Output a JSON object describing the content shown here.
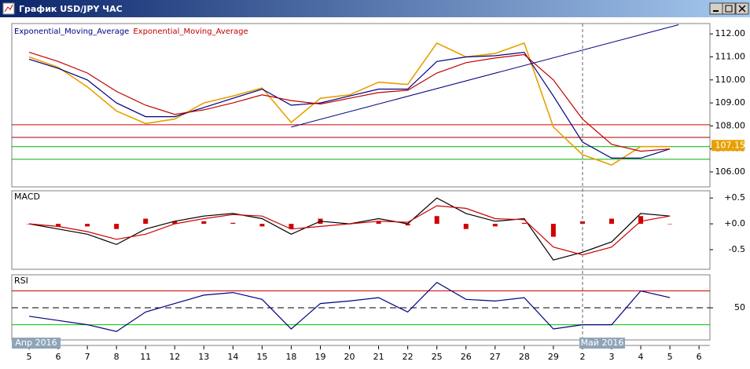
{
  "window_title": "График USD/JPY ЧАС",
  "month_labels": [
    "Апр 2016",
    "Май 2016"
  ],
  "chart_data": [
    {
      "type": "line",
      "categories": [
        "5",
        "6",
        "7",
        "8",
        "11",
        "12",
        "13",
        "14",
        "15",
        "18",
        "19",
        "20",
        "21",
        "22",
        "25",
        "26",
        "27",
        "28",
        "29",
        "2",
        "3",
        "4",
        "5",
        "6"
      ],
      "series": [
        {
          "color": "#e8a000",
          "values": [
            111.0,
            110.55,
            109.7,
            108.65,
            108.1,
            108.3,
            109.0,
            109.3,
            109.65,
            108.15,
            109.2,
            109.35,
            109.9,
            109.8,
            111.6,
            111.0,
            111.15,
            111.6,
            107.95,
            106.75,
            106.3,
            107.1,
            107.1,
            null
          ]
        },
        {
          "name": "Exponential_Moving_Average",
          "color": "#000080",
          "values": [
            110.9,
            110.5,
            110.0,
            109.0,
            108.4,
            108.4,
            108.8,
            109.2,
            109.6,
            108.9,
            109.0,
            109.3,
            109.6,
            109.6,
            110.8,
            111.0,
            111.05,
            111.2,
            109.3,
            107.3,
            106.6,
            106.6,
            107.0,
            null
          ]
        },
        {
          "name": "Exponential_Moving_Average",
          "color": "#c00000",
          "values": [
            111.2,
            110.8,
            110.3,
            109.5,
            108.9,
            108.5,
            108.7,
            109.0,
            109.35,
            109.1,
            108.95,
            109.2,
            109.45,
            109.55,
            110.3,
            110.75,
            110.95,
            111.1,
            110.0,
            108.3,
            107.2,
            106.9,
            107.0,
            null
          ]
        }
      ],
      "levels": [
        {
          "value": 108.05,
          "color": "#d00000"
        },
        {
          "value": 107.5,
          "color": "#a00000"
        },
        {
          "value": 107.1,
          "color": "#00b000"
        },
        {
          "value": 106.55,
          "color": "#00b000"
        }
      ],
      "trendline": {
        "from_index": 9,
        "from_value": 107.95,
        "to_index": 22.3,
        "to_value": 112.4,
        "color": "#000080"
      },
      "last_price": 107.15,
      "ylim": [
        105.35,
        112.45
      ],
      "yticks": [
        {
          "value": 106,
          "label": "106.00"
        },
        {
          "value": 107,
          "label": "107.00"
        },
        {
          "value": 108,
          "label": "108.00"
        },
        {
          "value": 109,
          "label": "109.00"
        },
        {
          "value": 110,
          "label": "110.00"
        },
        {
          "value": 111,
          "label": "111.00"
        },
        {
          "value": 112,
          "label": "112.00"
        }
      ],
      "grid": false
    },
    {
      "type": "line",
      "title": "MACD",
      "series": [
        {
          "type": "bar",
          "color": "#d00000",
          "values": [
            0,
            -0.05,
            -0.05,
            -0.1,
            0.1,
            0.05,
            0.05,
            0.02,
            -0.05,
            -0.1,
            0.1,
            0,
            0.05,
            -0.03,
            0.15,
            -0.1,
            -0.05,
            0.02,
            -0.25,
            0.05,
            0.1,
            0.15,
            0,
            null
          ]
        },
        {
          "color": "#000000",
          "values": [
            0.0,
            -0.1,
            -0.2,
            -0.4,
            -0.1,
            0.05,
            0.15,
            0.2,
            0.1,
            -0.2,
            0.05,
            0.0,
            0.1,
            0.0,
            0.5,
            0.2,
            0.05,
            0.1,
            -0.7,
            -0.55,
            -0.35,
            0.2,
            0.15,
            null
          ]
        },
        {
          "color": "#d00000",
          "values": [
            0.0,
            -0.05,
            -0.15,
            -0.3,
            -0.2,
            0.0,
            0.1,
            0.18,
            0.15,
            -0.1,
            -0.05,
            0.0,
            0.05,
            0.03,
            0.35,
            0.3,
            0.1,
            0.08,
            -0.45,
            -0.6,
            -0.45,
            0.05,
            0.15,
            null
          ]
        }
      ],
      "ylim": [
        -0.88,
        0.64
      ],
      "yticks": [
        {
          "value": 0.5,
          "label": "+0.5"
        },
        {
          "value": 0,
          "label": "+0.0"
        },
        {
          "value": -0.5,
          "label": "-0.5"
        }
      ],
      "grid": false
    },
    {
      "type": "line",
      "title": "RSI",
      "series": [
        {
          "color": "#000080",
          "values": [
            40,
            35,
            30,
            22,
            45,
            55,
            65,
            68,
            60,
            25,
            55,
            58,
            62,
            45,
            80,
            60,
            58,
            62,
            25,
            30,
            30,
            70,
            62,
            null
          ]
        }
      ],
      "levels": [
        {
          "value": 70,
          "color": "#d00000"
        },
        {
          "value": 30,
          "color": "#00c000"
        }
      ],
      "ylim": [
        12,
        89
      ],
      "yticks": [
        50
      ],
      "grid": true
    }
  ]
}
